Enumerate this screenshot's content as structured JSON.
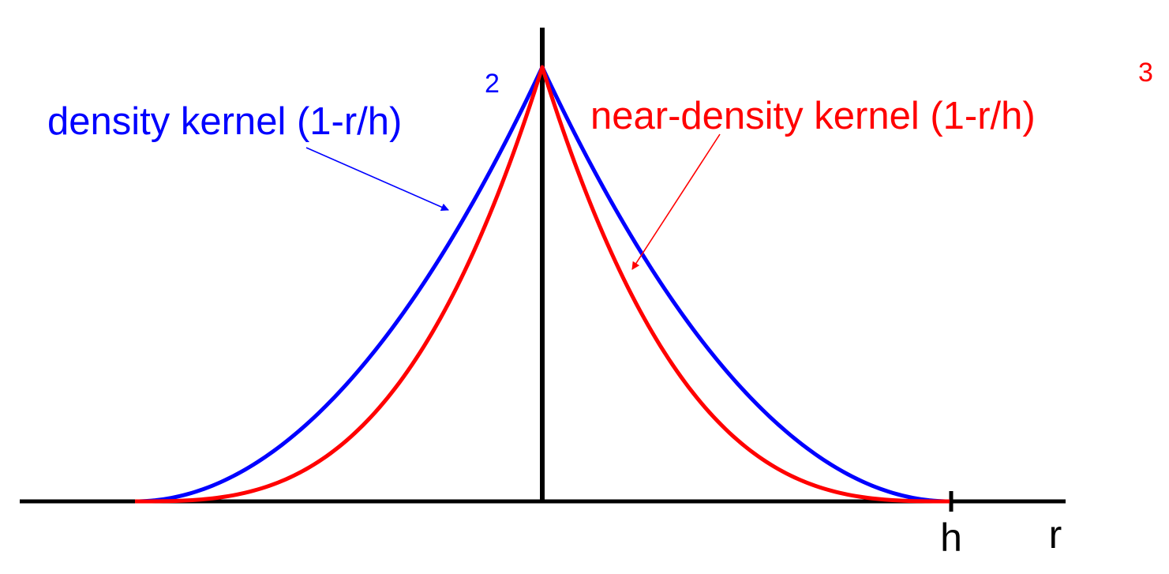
{
  "chart_data": {
    "type": "line",
    "title": "",
    "xlabel": "r",
    "ylabel": "",
    "x_tick_labels": [
      "h"
    ],
    "xlim": [
      -1,
      1
    ],
    "ylim": [
      0,
      1
    ],
    "grid": false,
    "series": [
      {
        "name": "density kernel (1-r/h)",
        "exponent": 2,
        "color": "#0000ff",
        "x": [
          -1.0,
          -0.9,
          -0.8,
          -0.7,
          -0.6,
          -0.5,
          -0.4,
          -0.3,
          -0.2,
          -0.1,
          0.0,
          0.1,
          0.2,
          0.3,
          0.4,
          0.5,
          0.6,
          0.7,
          0.8,
          0.9,
          1.0
        ],
        "y": [
          0.0,
          0.01,
          0.04,
          0.09,
          0.16,
          0.25,
          0.36,
          0.49,
          0.64,
          0.81,
          1.0,
          0.81,
          0.64,
          0.49,
          0.36,
          0.25,
          0.16,
          0.09,
          0.04,
          0.01,
          0.0
        ]
      },
      {
        "name": "near-density kernel (1-r/h)",
        "exponent": 3,
        "color": "#ff0000",
        "x": [
          -1.0,
          -0.9,
          -0.8,
          -0.7,
          -0.6,
          -0.5,
          -0.4,
          -0.3,
          -0.2,
          -0.1,
          0.0,
          0.1,
          0.2,
          0.3,
          0.4,
          0.5,
          0.6,
          0.7,
          0.8,
          0.9,
          1.0
        ],
        "y": [
          0.0,
          0.001,
          0.008,
          0.027,
          0.064,
          0.125,
          0.216,
          0.343,
          0.512,
          0.729,
          1.0,
          0.729,
          0.512,
          0.343,
          0.216,
          0.125,
          0.064,
          0.027,
          0.008,
          0.001,
          0.0
        ]
      }
    ],
    "annotations": [
      {
        "text": "density kernel (1-r/h)",
        "superscript": "2",
        "color": "#0000ff",
        "points_to_series": 0
      },
      {
        "text": "near-density kernel (1-r/h)",
        "superscript": "3",
        "color": "#ff0000",
        "points_to_series": 1
      }
    ]
  }
}
